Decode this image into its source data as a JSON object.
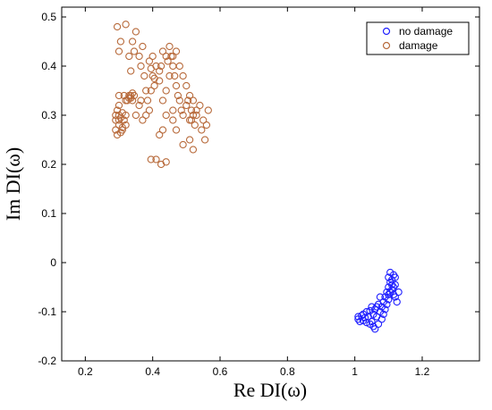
{
  "chart_data": {
    "type": "scatter",
    "xlabel": "Re DI(ω)",
    "ylabel": "Im DI(ω)",
    "xlim": [
      0.13,
      1.37
    ],
    "ylim": [
      -0.2,
      0.52
    ],
    "xticks": [
      "0.2",
      "0.4",
      "0.6",
      "0.8",
      "1",
      "1.2"
    ],
    "yticks": [
      "-0.2",
      "-0.1",
      "0",
      "0.1",
      "0.2",
      "0.3",
      "0.4",
      "0.5"
    ],
    "xtick_values": [
      0.2,
      0.4,
      0.6,
      0.8,
      1.0,
      1.2
    ],
    "ytick_values": [
      -0.2,
      -0.1,
      0,
      0.1,
      0.2,
      0.3,
      0.4,
      0.5
    ],
    "grid": false,
    "legend_position": "top-right",
    "series": [
      {
        "name": "no damage",
        "color": "#2020ff",
        "points": [
          [
            1.01,
            -0.11
          ],
          [
            1.01,
            -0.115
          ],
          [
            1.015,
            -0.12
          ],
          [
            1.02,
            -0.108
          ],
          [
            1.025,
            -0.118
          ],
          [
            1.03,
            -0.112
          ],
          [
            1.035,
            -0.122
          ],
          [
            1.04,
            -0.11
          ],
          [
            1.045,
            -0.098
          ],
          [
            1.05,
            -0.09
          ],
          [
            1.05,
            -0.12
          ],
          [
            1.055,
            -0.105
          ],
          [
            1.06,
            -0.135
          ],
          [
            1.06,
            -0.095
          ],
          [
            1.065,
            -0.11
          ],
          [
            1.07,
            -0.085
          ],
          [
            1.07,
            -0.125
          ],
          [
            1.075,
            -0.1
          ],
          [
            1.08,
            -0.09
          ],
          [
            1.08,
            -0.115
          ],
          [
            1.085,
            -0.08
          ],
          [
            1.09,
            -0.095
          ],
          [
            1.09,
            -0.07
          ],
          [
            1.095,
            -0.06
          ],
          [
            1.1,
            -0.05
          ],
          [
            1.1,
            -0.075
          ],
          [
            1.1,
            -0.03
          ],
          [
            1.105,
            -0.04
          ],
          [
            1.105,
            -0.02
          ],
          [
            1.11,
            -0.055
          ],
          [
            1.11,
            -0.035
          ],
          [
            1.115,
            -0.065
          ],
          [
            1.115,
            -0.025
          ],
          [
            1.12,
            -0.045
          ],
          [
            1.12,
            -0.07
          ],
          [
            1.125,
            -0.08
          ],
          [
            1.13,
            -0.06
          ],
          [
            1.095,
            -0.085
          ],
          [
            1.085,
            -0.105
          ],
          [
            1.075,
            -0.07
          ],
          [
            1.065,
            -0.09
          ],
          [
            1.055,
            -0.13
          ],
          [
            1.045,
            -0.125
          ],
          [
            1.035,
            -0.1
          ],
          [
            1.025,
            -0.105
          ],
          [
            1.1,
            -0.065
          ],
          [
            1.11,
            -0.045
          ],
          [
            1.12,
            -0.03
          ],
          [
            1.115,
            -0.05
          ],
          [
            1.105,
            -0.06
          ]
        ]
      },
      {
        "name": "damage",
        "color": "#b86b3c",
        "points": [
          [
            0.29,
            0.27
          ],
          [
            0.29,
            0.29
          ],
          [
            0.29,
            0.3
          ],
          [
            0.295,
            0.31
          ],
          [
            0.295,
            0.26
          ],
          [
            0.3,
            0.28
          ],
          [
            0.3,
            0.32
          ],
          [
            0.3,
            0.34
          ],
          [
            0.305,
            0.295
          ],
          [
            0.305,
            0.265
          ],
          [
            0.31,
            0.305
          ],
          [
            0.31,
            0.275
          ],
          [
            0.315,
            0.29
          ],
          [
            0.315,
            0.34
          ],
          [
            0.32,
            0.33
          ],
          [
            0.32,
            0.28
          ],
          [
            0.325,
            0.33
          ],
          [
            0.33,
            0.34
          ],
          [
            0.335,
            0.335
          ],
          [
            0.34,
            0.33
          ],
          [
            0.345,
            0.34
          ],
          [
            0.34,
            0.345
          ],
          [
            0.33,
            0.42
          ],
          [
            0.335,
            0.39
          ],
          [
            0.34,
            0.45
          ],
          [
            0.345,
            0.43
          ],
          [
            0.35,
            0.47
          ],
          [
            0.36,
            0.42
          ],
          [
            0.365,
            0.4
          ],
          [
            0.37,
            0.44
          ],
          [
            0.375,
            0.38
          ],
          [
            0.38,
            0.35
          ],
          [
            0.385,
            0.33
          ],
          [
            0.39,
            0.31
          ],
          [
            0.39,
            0.41
          ],
          [
            0.395,
            0.35
          ],
          [
            0.4,
            0.38
          ],
          [
            0.405,
            0.36
          ],
          [
            0.41,
            0.4
          ],
          [
            0.42,
            0.37
          ],
          [
            0.425,
            0.4
          ],
          [
            0.43,
            0.43
          ],
          [
            0.44,
            0.42
          ],
          [
            0.445,
            0.41
          ],
          [
            0.45,
            0.44
          ],
          [
            0.455,
            0.42
          ],
          [
            0.46,
            0.4
          ],
          [
            0.465,
            0.38
          ],
          [
            0.47,
            0.36
          ],
          [
            0.475,
            0.34
          ],
          [
            0.48,
            0.33
          ],
          [
            0.485,
            0.31
          ],
          [
            0.49,
            0.3
          ],
          [
            0.5,
            0.32
          ],
          [
            0.505,
            0.33
          ],
          [
            0.51,
            0.29
          ],
          [
            0.515,
            0.31
          ],
          [
            0.52,
            0.3
          ],
          [
            0.525,
            0.28
          ],
          [
            0.53,
            0.3
          ],
          [
            0.54,
            0.32
          ],
          [
            0.545,
            0.27
          ],
          [
            0.55,
            0.29
          ],
          [
            0.555,
            0.25
          ],
          [
            0.56,
            0.28
          ],
          [
            0.565,
            0.31
          ],
          [
            0.52,
            0.23
          ],
          [
            0.51,
            0.25
          ],
          [
            0.49,
            0.24
          ],
          [
            0.47,
            0.27
          ],
          [
            0.46,
            0.29
          ],
          [
            0.44,
            0.3
          ],
          [
            0.43,
            0.27
          ],
          [
            0.42,
            0.26
          ],
          [
            0.41,
            0.21
          ],
          [
            0.425,
            0.2
          ],
          [
            0.44,
            0.205
          ],
          [
            0.395,
            0.21
          ],
          [
            0.46,
            0.31
          ],
          [
            0.38,
            0.3
          ],
          [
            0.37,
            0.29
          ],
          [
            0.36,
            0.32
          ],
          [
            0.35,
            0.3
          ],
          [
            0.43,
            0.33
          ],
          [
            0.44,
            0.35
          ],
          [
            0.45,
            0.38
          ],
          [
            0.46,
            0.42
          ],
          [
            0.47,
            0.43
          ],
          [
            0.48,
            0.4
          ],
          [
            0.49,
            0.38
          ],
          [
            0.5,
            0.36
          ],
          [
            0.51,
            0.34
          ],
          [
            0.52,
            0.33
          ],
          [
            0.53,
            0.31
          ],
          [
            0.515,
            0.29
          ],
          [
            0.295,
            0.48
          ],
          [
            0.305,
            0.45
          ],
          [
            0.3,
            0.43
          ],
          [
            0.32,
            0.485
          ],
          [
            0.335,
            0.34
          ],
          [
            0.33,
            0.335
          ],
          [
            0.3,
            0.29
          ],
          [
            0.31,
            0.27
          ],
          [
            0.42,
            0.39
          ],
          [
            0.4,
            0.42
          ],
          [
            0.395,
            0.395
          ],
          [
            0.405,
            0.375
          ],
          [
            0.365,
            0.33
          ],
          [
            0.3,
            0.3
          ],
          [
            0.32,
            0.3
          ]
        ]
      }
    ]
  },
  "legend": {
    "items": [
      {
        "label": "no damage",
        "color": "#2020ff"
      },
      {
        "label": "damage",
        "color": "#b86b3c"
      }
    ]
  }
}
